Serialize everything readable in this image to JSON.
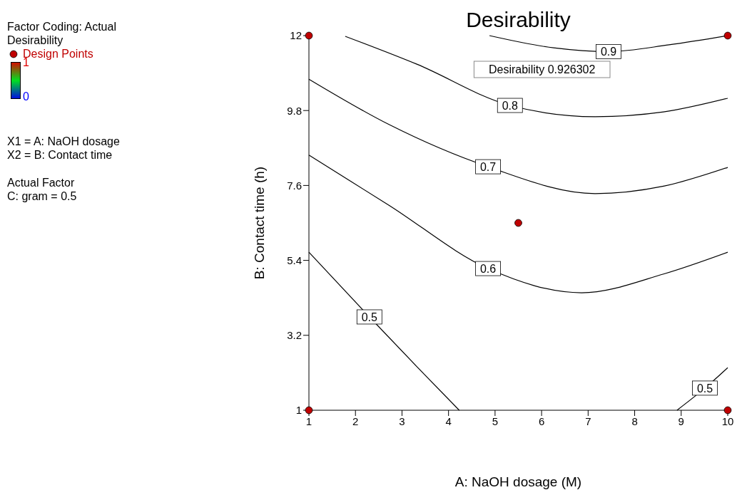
{
  "chart_data": {
    "type": "line",
    "title": "Desirability",
    "xlabel": "A: NaOH dosage (M)",
    "ylabel": "B: Contact time (h)",
    "clabel": "Desirability",
    "clim": [
      0,
      1
    ],
    "cticks": [
      0,
      1
    ],
    "xlim": [
      1,
      10
    ],
    "xticks": [
      1,
      2,
      3,
      4,
      5,
      6,
      7,
      8,
      9,
      10
    ],
    "ylim": [
      1,
      12
    ],
    "yticks": [
      1,
      3.2,
      5.4,
      7.6,
      9.8,
      12
    ],
    "grid": false,
    "legend": "top left",
    "line_style": "solid",
    "series": [
      {
        "name": "0.9",
        "color": "#000000",
        "x": [
          4.88,
          6.26,
          7.44,
          8.74,
          10
        ],
        "values": [
          12,
          11.64,
          11.53,
          11.73,
          12
        ]
      },
      {
        "name": "0.8",
        "color": "#000000",
        "x": [
          1.78,
          3.32,
          5.32,
          7.15,
          8.62,
          10
        ],
        "values": [
          11.98,
          11.16,
          9.95,
          9.62,
          9.76,
          10.16
        ]
      },
      {
        "name": "0.7",
        "color": "#000000",
        "x": [
          1,
          2.72,
          4.85,
          7.15,
          8.62,
          10
        ],
        "values": [
          10.72,
          9.39,
          8.15,
          7.36,
          7.58,
          8.13
        ]
      },
      {
        "name": "0.6",
        "color": "#000000",
        "x": [
          1,
          2.72,
          4.85,
          6.86,
          8.62,
          10
        ],
        "values": [
          8.49,
          7.02,
          5.16,
          4.45,
          5.0,
          5.64
        ]
      },
      {
        "name": "0.5",
        "color": "#000000",
        "x": [
          1,
          2.3,
          3.32,
          4.23,
          6.5,
          8.91,
          9.51,
          10
        ],
        "values": [
          5.64,
          3.74,
          2.28,
          1,
          null,
          1,
          1.65,
          2.25
        ]
      },
      {
        "name": "Design Points",
        "type": "scatter",
        "marker": "circle",
        "color": "#c00000",
        "x": [
          1,
          1,
          10,
          10,
          5.5
        ],
        "values": [
          1,
          12,
          1,
          12,
          6.5
        ]
      }
    ],
    "annotations": [
      "Factor Coding: Actual",
      "X1 = A: NaOH dosage",
      "X2 = B: Contact time",
      "Actual Factor",
      "C: gram = 0.5",
      "Desirability 0.926302"
    ]
  }
}
